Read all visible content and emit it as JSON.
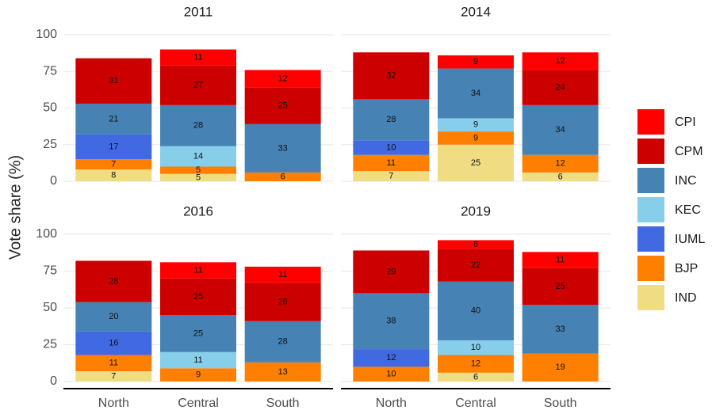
{
  "chart_data": [
    {
      "type": "bar",
      "stacked": true,
      "title": "2011",
      "y_label": "Vote share (%)",
      "categories": [
        "North",
        "Central",
        "South"
      ],
      "ylim": [
        0,
        100
      ],
      "yticks": [
        0,
        25,
        50,
        75,
        100
      ],
      "grid": true,
      "series": [
        {
          "name": "IND",
          "color": "#f0dc82",
          "values": [
            8,
            5,
            null
          ]
        },
        {
          "name": "BJP",
          "color": "#ff7f00",
          "values": [
            7,
            5,
            6
          ]
        },
        {
          "name": "IUML",
          "color": "#4169e1",
          "values": [
            17,
            null,
            null
          ]
        },
        {
          "name": "KEC",
          "color": "#87ceeb",
          "values": [
            null,
            14,
            null
          ]
        },
        {
          "name": "INC",
          "color": "#4682b4",
          "values": [
            21,
            28,
            33
          ]
        },
        {
          "name": "CPM",
          "color": "#cd0000",
          "values": [
            31,
            27,
            25
          ]
        },
        {
          "name": "CPI",
          "color": "#ff0000",
          "values": [
            null,
            11,
            12
          ]
        }
      ]
    },
    {
      "type": "bar",
      "stacked": true,
      "title": "2014",
      "categories": [
        "North",
        "Central",
        "South"
      ],
      "ylim": [
        0,
        100
      ],
      "yticks": [
        0,
        25,
        50,
        75,
        100
      ],
      "grid": true,
      "series": [
        {
          "name": "IND",
          "color": "#f0dc82",
          "values": [
            7,
            25,
            6
          ]
        },
        {
          "name": "BJP",
          "color": "#ff7f00",
          "values": [
            11,
            9,
            12
          ]
        },
        {
          "name": "IUML",
          "color": "#4169e1",
          "values": [
            10,
            null,
            null
          ]
        },
        {
          "name": "KEC",
          "color": "#87ceeb",
          "values": [
            null,
            9,
            null
          ]
        },
        {
          "name": "INC",
          "color": "#4682b4",
          "values": [
            28,
            34,
            34
          ]
        },
        {
          "name": "CPM",
          "color": "#cd0000",
          "values": [
            32,
            null,
            24
          ]
        },
        {
          "name": "CPI",
          "color": "#ff0000",
          "values": [
            null,
            9,
            12
          ]
        }
      ]
    },
    {
      "type": "bar",
      "stacked": true,
      "title": "2016",
      "categories": [
        "North",
        "Central",
        "South"
      ],
      "ylim": [
        0,
        100
      ],
      "yticks": [
        0,
        25,
        50,
        75,
        100
      ],
      "grid": true,
      "series": [
        {
          "name": "IND",
          "color": "#f0dc82",
          "values": [
            7,
            null,
            null
          ]
        },
        {
          "name": "BJP",
          "color": "#ff7f00",
          "values": [
            11,
            9,
            13
          ]
        },
        {
          "name": "IUML",
          "color": "#4169e1",
          "values": [
            16,
            null,
            null
          ]
        },
        {
          "name": "KEC",
          "color": "#87ceeb",
          "values": [
            null,
            11,
            null
          ]
        },
        {
          "name": "INC",
          "color": "#4682b4",
          "values": [
            20,
            25,
            28
          ]
        },
        {
          "name": "CPM",
          "color": "#cd0000",
          "values": [
            28,
            25,
            26
          ]
        },
        {
          "name": "CPI",
          "color": "#ff0000",
          "values": [
            null,
            11,
            11
          ]
        }
      ]
    },
    {
      "type": "bar",
      "stacked": true,
      "title": "2019",
      "categories": [
        "North",
        "Central",
        "South"
      ],
      "ylim": [
        0,
        100
      ],
      "yticks": [
        0,
        25,
        50,
        75,
        100
      ],
      "grid": true,
      "series": [
        {
          "name": "IND",
          "color": "#f0dc82",
          "values": [
            null,
            6,
            null
          ]
        },
        {
          "name": "BJP",
          "color": "#ff7f00",
          "values": [
            10,
            12,
            19
          ]
        },
        {
          "name": "IUML",
          "color": "#4169e1",
          "values": [
            12,
            null,
            null
          ]
        },
        {
          "name": "KEC",
          "color": "#87ceeb",
          "values": [
            null,
            10,
            null
          ]
        },
        {
          "name": "INC",
          "color": "#4682b4",
          "values": [
            38,
            40,
            33
          ]
        },
        {
          "name": "CPM",
          "color": "#cd0000",
          "values": [
            29,
            22,
            25
          ]
        },
        {
          "name": "CPI",
          "color": "#ff0000",
          "values": [
            null,
            6,
            11
          ]
        }
      ]
    }
  ]
}
